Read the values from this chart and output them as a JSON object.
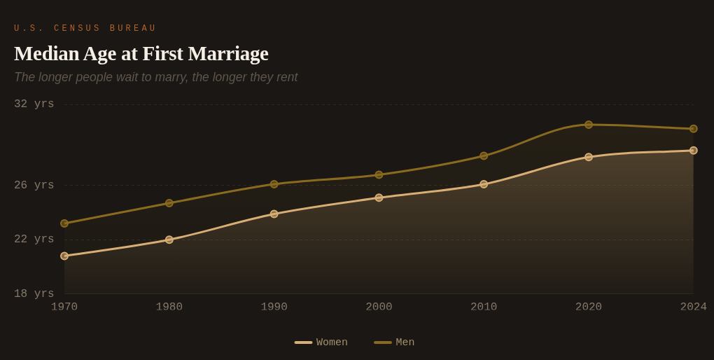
{
  "chart_data": {
    "type": "area",
    "title": "Median Age at First Marriage",
    "subtitle": "The longer people wait to marry, the longer they rent",
    "annotations": [
      "U.S. CENSUS BUREAU"
    ],
    "categories": [
      "1970",
      "1980",
      "1990",
      "2000",
      "2010",
      "2020",
      "2024"
    ],
    "series": [
      {
        "name": "Women",
        "color": "#d9ae74",
        "values": [
          20.8,
          22.0,
          23.9,
          25.1,
          26.1,
          28.1,
          28.6
        ]
      },
      {
        "name": "Men",
        "color": "#8a6a1e",
        "values": [
          23.2,
          24.7,
          26.1,
          26.8,
          28.2,
          30.5,
          30.2
        ]
      }
    ],
    "ylim": [
      18,
      32
    ],
    "yticks": [
      {
        "value": 18,
        "label": "18 yrs"
      },
      {
        "value": 22,
        "label": "22 yrs"
      },
      {
        "value": 26,
        "label": "26 yrs"
      },
      {
        "value": 32,
        "label": "32 yrs"
      }
    ],
    "grid": "y",
    "legend": "bottom",
    "marker": "circle"
  }
}
